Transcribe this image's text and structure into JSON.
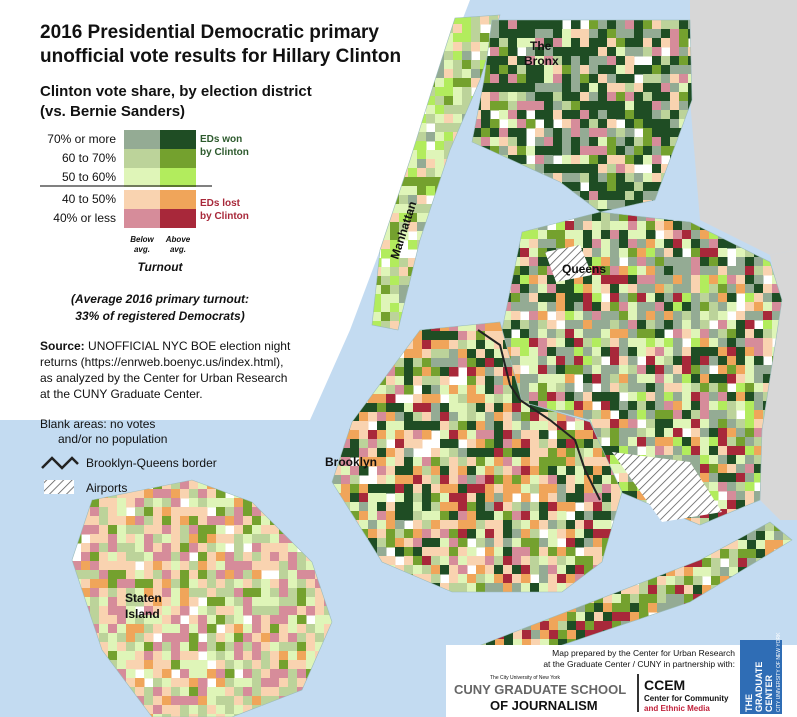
{
  "title": [
    "2016 Presidential Democratic primary",
    "unofficial vote results for Hillary Clinton"
  ],
  "subtitle": [
    "Clinton vote share, by election district",
    "(vs. Bernie Sanders)"
  ],
  "legend": {
    "rows": [
      {
        "label": "70% or more",
        "below_color": "#94ab94",
        "above_color": "#1f4d24"
      },
      {
        "label": "60 to 70%",
        "below_color": "#bcd39a",
        "above_color": "#74a12e"
      },
      {
        "label": "50 to 60%",
        "below_color": "#dff5b8",
        "above_color": "#b2ec5d"
      },
      {
        "label": "40 to 50%",
        "below_color": "#f9d3b0",
        "above_color": "#f0a55a"
      },
      {
        "label": "40% or less",
        "below_color": "#d68c9a",
        "above_color": "#a8283a"
      }
    ],
    "won": [
      "EDs won",
      "by Clinton"
    ],
    "lost": [
      "EDs lost",
      "by Clinton"
    ],
    "below": [
      "Below",
      "avg."
    ],
    "above": [
      "Above",
      "avg."
    ],
    "turnout": "Turnout"
  },
  "turnout_note": [
    "(Average 2016 primary turnout:",
    "33% of registered Democrats)"
  ],
  "source": {
    "head": "Source:",
    "lines": [
      " UNOFFICIAL NYC BOE election night",
      "returns (https://enrweb.boenyc.us/index.html),",
      "as analyzed by the Center for Urban Research",
      "at the CUNY Graduate Center."
    ]
  },
  "blank_note": [
    "Blank areas: no votes",
    "and/or no population"
  ],
  "border_label": "Brooklyn-Queens border",
  "airports_label": "Airports",
  "places": {
    "bronx": [
      "The",
      "Bronx"
    ],
    "manhattan": "Manhattan",
    "queens": "Queens",
    "brooklyn": "Brooklyn",
    "staten": [
      "Staten",
      "Island"
    ]
  },
  "credits": {
    "lines": [
      "Map prepared by the Center for Urban Research",
      "at the Graduate Center / CUNY in partnership with:"
    ],
    "cuny_small": "The City University of New York",
    "cuny": [
      "CUNY GRADUATE SCHOOL",
      "OF JOURNALISM"
    ],
    "ccem": "CCEM",
    "ccem_sub": [
      "Center for Community",
      "and Ethnic Media"
    ],
    "gc": [
      "THE",
      "GRADUATE",
      "CENTER"
    ],
    "gc_sub": "CITY UNIVERSITY OF NEW YORK"
  }
}
